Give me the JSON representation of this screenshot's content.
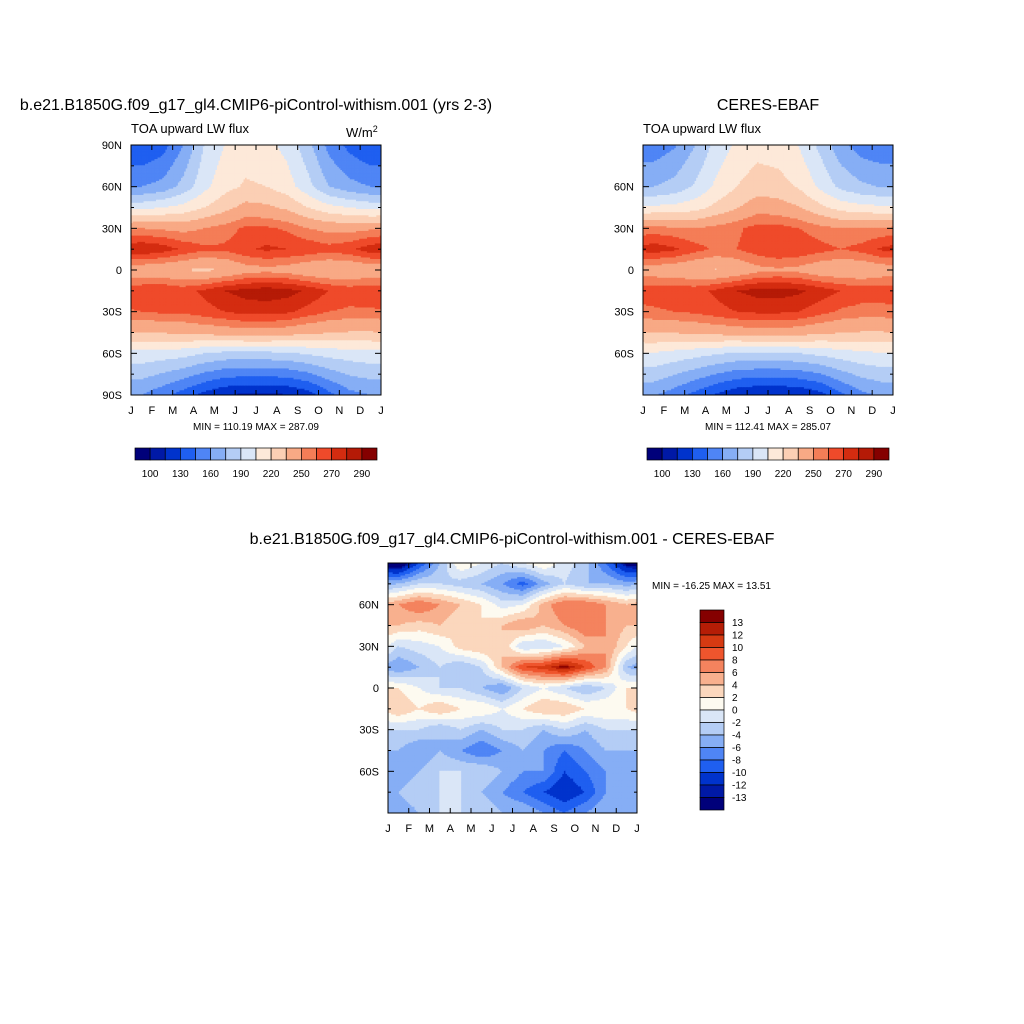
{
  "months": [
    "J",
    "F",
    "M",
    "A",
    "M",
    "J",
    "J",
    "A",
    "S",
    "O",
    "N",
    "D",
    "J"
  ],
  "lat_labels": [
    "90N",
    "60N",
    "30N",
    "0",
    "30S",
    "60S",
    "90S"
  ],
  "lat_labels_obs": [
    "60N",
    "30N",
    "0",
    "30S",
    "60S"
  ],
  "lat_labels_diff": [
    "60N",
    "30N",
    "0",
    "30S",
    "60S"
  ],
  "colors": {
    "abs": [
      "#00007a",
      "#0019a6",
      "#0033cc",
      "#1f5ff0",
      "#4f85f5",
      "#86aef5",
      "#b4cdf5",
      "#dae6f7",
      "#fde9d9",
      "#fbcfb4",
      "#f8a985",
      "#f47d57",
      "#ef4a2a",
      "#d42c10",
      "#b51a06",
      "#850000"
    ],
    "diff": [
      "#00007a",
      "#0019a6",
      "#0033cc",
      "#1f5ff0",
      "#4f85f5",
      "#86aef5",
      "#b4cdf5",
      "#dae6f7",
      "#fdfaf0",
      "#fbd7bd",
      "#f8b08e",
      "#f4835e",
      "#ef552d",
      "#d63a12",
      "#b51d06",
      "#850000"
    ]
  },
  "panels": {
    "model": {
      "title": "b.e21.B1850G.f09_g17_gl4.CMIP6-piControl-withism.001 (yrs 2-3)",
      "subtitle": "TOA upward LW flux",
      "units": "W/m",
      "units_sup": "2",
      "minmax": "MIN = 110.19 MAX = 287.09"
    },
    "obs": {
      "title": "CERES-EBAF",
      "subtitle": "TOA upward LW flux",
      "minmax": "MIN = 112.41 MAX = 285.07"
    },
    "diff": {
      "title": "b.e21.B1850G.f09_g17_gl4.CMIP6-piControl-withism.001 - CERES-EBAF",
      "minmax": "MIN = -16.25 MAX =  13.51"
    }
  },
  "colorbar_abs_labels": [
    "100",
    "130",
    "160",
    "190",
    "220",
    "250",
    "270",
    "290"
  ],
  "colorbar_diff_labels": [
    "13",
    "12",
    "10",
    "8",
    "6",
    "4",
    "2",
    "0",
    "-2",
    "-4",
    "-6",
    "-8",
    "-10",
    "-12",
    "-13"
  ],
  "chart_data": [
    {
      "type": "heatmap",
      "title": "b.e21.B1850G.f09_g17_gl4.CMIP6-piControl-withism.001 (yrs 2-3)",
      "subtitle": "TOA upward LW flux",
      "units": "W/m2",
      "x": [
        "J",
        "F",
        "M",
        "A",
        "M",
        "J",
        "J",
        "A",
        "S",
        "O",
        "N",
        "D",
        "J"
      ],
      "y": [
        "90N",
        "60N",
        "30N",
        "0",
        "30S",
        "60S",
        "90S"
      ],
      "zmin": 110.19,
      "zmax": 287.09,
      "grid_lats": [
        90,
        60,
        45,
        30,
        15,
        0,
        -15,
        -30,
        -45,
        -60,
        -90
      ],
      "values": [
        [
          130,
          138,
          160,
          190,
          205,
          212,
          210,
          200,
          180,
          155,
          140,
          130
        ],
        [
          160,
          165,
          180,
          200,
          215,
          222,
          220,
          212,
          195,
          175,
          165,
          160
        ],
        [
          200,
          205,
          210,
          220,
          230,
          240,
          238,
          232,
          220,
          210,
          205,
          200
        ],
        [
          250,
          248,
          246,
          250,
          255,
          262,
          262,
          258,
          250,
          246,
          245,
          248
        ],
        [
          280,
          276,
          268,
          262,
          262,
          268,
          272,
          270,
          268,
          264,
          268,
          276
        ],
        [
          240,
          238,
          235,
          232,
          236,
          244,
          246,
          244,
          238,
          236,
          236,
          240
        ],
        [
          268,
          270,
          266,
          272,
          280,
          284,
          286,
          284,
          278,
          270,
          266,
          268
        ],
        [
          260,
          262,
          262,
          266,
          270,
          274,
          274,
          272,
          266,
          260,
          258,
          258
        ],
        [
          235,
          236,
          238,
          240,
          242,
          244,
          244,
          242,
          238,
          236,
          234,
          234
        ],
        [
          200,
          198,
          196,
          190,
          186,
          186,
          186,
          188,
          192,
          196,
          198,
          200
        ],
        [
          160,
          150,
          138,
          125,
          116,
          112,
          112,
          114,
          122,
          140,
          155,
          160
        ]
      ]
    },
    {
      "type": "heatmap",
      "title": "CERES-EBAF",
      "subtitle": "TOA upward LW flux",
      "x": [
        "J",
        "F",
        "M",
        "A",
        "M",
        "J",
        "J",
        "A",
        "S",
        "O",
        "N",
        "D",
        "J"
      ],
      "y": [
        "60N",
        "30N",
        "0",
        "30S",
        "60S"
      ],
      "zmin": 112.41,
      "zmax": 285.07,
      "grid_lats": [
        90,
        60,
        45,
        30,
        15,
        0,
        -15,
        -30,
        -45,
        -60,
        -90
      ],
      "values": [
        [
          150,
          158,
          175,
          195,
          208,
          214,
          212,
          204,
          186,
          165,
          152,
          148
        ],
        [
          175,
          180,
          192,
          208,
          220,
          228,
          226,
          218,
          202,
          186,
          178,
          174
        ],
        [
          208,
          210,
          214,
          224,
          234,
          244,
          242,
          236,
          224,
          214,
          210,
          208
        ],
        [
          254,
          252,
          250,
          254,
          258,
          264,
          264,
          260,
          254,
          250,
          250,
          252
        ],
        [
          276,
          272,
          264,
          258,
          260,
          266,
          270,
          268,
          264,
          260,
          264,
          272
        ],
        [
          242,
          240,
          236,
          234,
          238,
          246,
          248,
          246,
          240,
          238,
          238,
          242
        ],
        [
          266,
          268,
          266,
          272,
          280,
          284,
          285,
          282,
          276,
          270,
          266,
          266
        ],
        [
          258,
          260,
          262,
          266,
          270,
          272,
          272,
          270,
          264,
          258,
          256,
          256
        ],
        [
          236,
          236,
          238,
          240,
          242,
          244,
          244,
          242,
          238,
          236,
          234,
          234
        ],
        [
          204,
          200,
          196,
          192,
          188,
          188,
          188,
          190,
          194,
          198,
          202,
          204
        ],
        [
          162,
          152,
          140,
          128,
          118,
          114,
          114,
          116,
          124,
          142,
          156,
          162
        ]
      ]
    },
    {
      "type": "heatmap",
      "title": "b.e21.B1850G.f09_g17_gl4.CMIP6-piControl-withism.001 - CERES-EBAF",
      "x": [
        "J",
        "F",
        "M",
        "A",
        "M",
        "J",
        "J",
        "A",
        "S",
        "O",
        "N",
        "D",
        "J"
      ],
      "y": [
        "60N",
        "30N",
        "0",
        "30S",
        "60S"
      ],
      "zmin": -16.25,
      "zmax": 13.51,
      "grid_lats": [
        90,
        75,
        60,
        45,
        30,
        15,
        0,
        -15,
        -30,
        -45,
        -60,
        -75,
        -90
      ],
      "values": [
        [
          -16,
          -10,
          -4,
          2,
          0,
          -2,
          0,
          2,
          -1,
          -3,
          -8,
          -14
        ],
        [
          -4,
          -2,
          -2,
          -3,
          -4,
          -6,
          -9,
          -5,
          -2,
          -4,
          -4,
          -5
        ],
        [
          6,
          8,
          6,
          4,
          2,
          -1,
          0,
          5,
          8,
          8,
          6,
          4
        ],
        [
          4,
          3,
          4,
          2,
          2,
          4,
          6,
          4,
          6,
          8,
          6,
          4
        ],
        [
          -2,
          -1,
          0,
          3,
          4,
          4,
          -2,
          -2,
          0,
          4,
          6,
          2
        ],
        [
          -6,
          -4,
          -2,
          -4,
          -2,
          4,
          10,
          11,
          14,
          10,
          6,
          -4
        ],
        [
          2,
          0,
          -2,
          -2,
          -4,
          -6,
          -2,
          0,
          -2,
          -4,
          -2,
          2
        ],
        [
          4,
          2,
          4,
          2,
          2,
          0,
          2,
          4,
          4,
          2,
          2,
          2
        ],
        [
          -2,
          -2,
          -4,
          -2,
          -4,
          -2,
          -2,
          -4,
          -2,
          -4,
          -2,
          -2
        ],
        [
          -4,
          -6,
          -4,
          -6,
          -8,
          -6,
          -4,
          -6,
          -8,
          -6,
          -4,
          -4
        ],
        [
          -6,
          -4,
          -2,
          -2,
          -2,
          -4,
          -6,
          -6,
          -10,
          -8,
          -6,
          -4
        ],
        [
          -4,
          -2,
          -2,
          -2,
          -4,
          -6,
          -8,
          -10,
          -12,
          -10,
          -6,
          -4
        ],
        [
          -6,
          -4,
          -2,
          -2,
          -2,
          -4,
          -4,
          -6,
          -8,
          -6,
          -4,
          -4
        ]
      ]
    }
  ]
}
